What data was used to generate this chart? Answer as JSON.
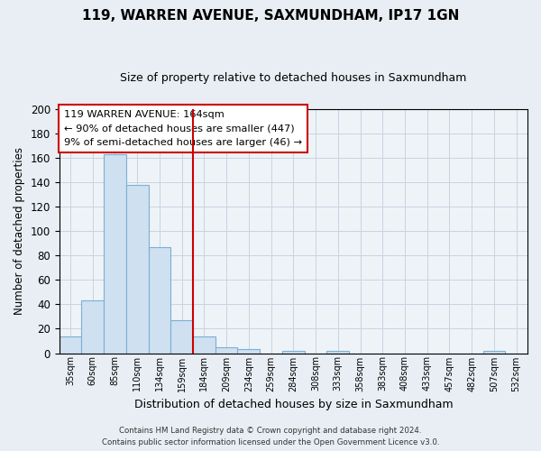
{
  "title": "119, WARREN AVENUE, SAXMUNDHAM, IP17 1GN",
  "subtitle": "Size of property relative to detached houses in Saxmundham",
  "xlabel": "Distribution of detached houses by size in Saxmundham",
  "ylabel": "Number of detached properties",
  "bar_labels": [
    "35sqm",
    "60sqm",
    "85sqm",
    "110sqm",
    "134sqm",
    "159sqm",
    "184sqm",
    "209sqm",
    "234sqm",
    "259sqm",
    "284sqm",
    "308sqm",
    "333sqm",
    "358sqm",
    "383sqm",
    "408sqm",
    "433sqm",
    "457sqm",
    "482sqm",
    "507sqm",
    "532sqm"
  ],
  "bar_values": [
    14,
    43,
    163,
    138,
    87,
    27,
    14,
    5,
    3,
    0,
    2,
    0,
    2,
    0,
    0,
    0,
    0,
    0,
    0,
    2,
    0
  ],
  "bar_color": "#cfe0f0",
  "bar_edge_color": "#7bafd4",
  "ylim": [
    0,
    200
  ],
  "yticks": [
    0,
    20,
    40,
    60,
    80,
    100,
    120,
    140,
    160,
    180,
    200
  ],
  "vline_color": "#cc0000",
  "annotation_title": "119 WARREN AVENUE: 164sqm",
  "annotation_line1": "← 90% of detached houses are smaller (447)",
  "annotation_line2": "9% of semi-detached houses are larger (46) →",
  "footer1": "Contains HM Land Registry data © Crown copyright and database right 2024.",
  "footer2": "Contains public sector information licensed under the Open Government Licence v3.0.",
  "background_color": "#e8eef4",
  "plot_background_color": "#eef3f8",
  "grid_color": "#c8d4e0"
}
